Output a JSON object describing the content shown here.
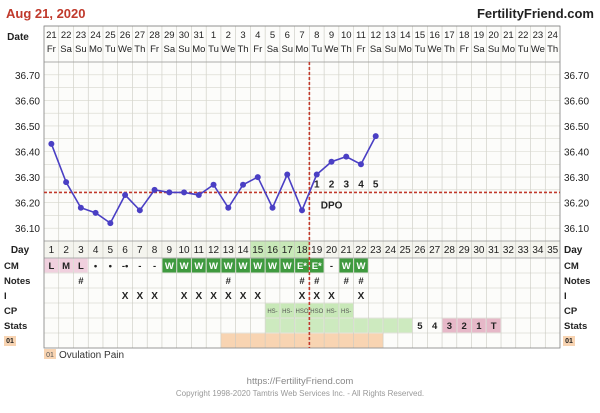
{
  "header": {
    "date": "Aug 21, 2020",
    "site": "FertilityFriend.com"
  },
  "footer": {
    "url": "https://FertilityFriend.com",
    "copyright": "Copyright 1998-2020 Tamtris Web Services Inc. - All Rights Reserved."
  },
  "legend": {
    "code": "01",
    "label": "Ovulation Pain"
  },
  "colors": {
    "line": "#4a3fc4",
    "coverline": "#c0392b",
    "ovulation_line": "#c0392b",
    "title": "#c0392b",
    "cm_fertile": "#3f9a3f",
    "cm_light": "#f0d0de",
    "fertile_window": "#c8e8b8",
    "stats_high": "#e6b8c8",
    "pain": "#f8d4b2"
  },
  "chart_data": {
    "type": "line",
    "axis_titles": {
      "date": "Date",
      "day": "Day"
    },
    "date_row": [
      "21",
      "22",
      "23",
      "24",
      "25",
      "26",
      "27",
      "28",
      "29",
      "30",
      "31",
      "1",
      "2",
      "3",
      "4",
      "5",
      "6",
      "7",
      "8",
      "9",
      "10",
      "11",
      "12",
      "13",
      "14",
      "15",
      "16",
      "17",
      "18",
      "19",
      "20",
      "21",
      "22",
      "23",
      "24"
    ],
    "weekday_row": [
      "Fr",
      "Sa",
      "Su",
      "Mo",
      "Tu",
      "We",
      "Th",
      "Fr",
      "Sa",
      "Su",
      "Mo",
      "Tu",
      "We",
      "Th",
      "Fr",
      "Sa",
      "Su",
      "Mo",
      "Tu",
      "We",
      "Th",
      "Fr",
      "Sa",
      "Su",
      "Mo",
      "Tu",
      "We",
      "Th",
      "Fr",
      "Sa",
      "Su",
      "Mo",
      "Tu",
      "We",
      "Th"
    ],
    "day_row": [
      "1",
      "2",
      "3",
      "4",
      "5",
      "6",
      "7",
      "8",
      "9",
      "10",
      "11",
      "12",
      "13",
      "14",
      "15",
      "16",
      "17",
      "18",
      "19",
      "20",
      "21",
      "22",
      "23",
      "24",
      "25",
      "26",
      "27",
      "28",
      "29",
      "30",
      "31",
      "32",
      "33",
      "34",
      "35"
    ],
    "ylim": [
      36.05,
      36.75
    ],
    "y_ticks": [
      "36.70",
      "36.60",
      "36.50",
      "36.40",
      "36.30",
      "36.20",
      "36.10"
    ],
    "y_tick_values": [
      36.7,
      36.6,
      36.5,
      36.4,
      36.3,
      36.2,
      36.1
    ],
    "temps": [
      36.43,
      36.28,
      36.18,
      36.16,
      36.12,
      36.23,
      36.17,
      36.25,
      36.24,
      36.24,
      36.23,
      36.27,
      36.18,
      36.27,
      36.3,
      36.18,
      36.31,
      36.17,
      36.31,
      36.36,
      36.38,
      36.35,
      36.46
    ],
    "coverline": 36.24,
    "ovulation_day": 18,
    "dpo_label": "DPO",
    "dpo": [
      {
        "day": 19,
        "label": "1"
      },
      {
        "day": 20,
        "label": "2"
      },
      {
        "day": 21,
        "label": "3"
      },
      {
        "day": 22,
        "label": "4"
      },
      {
        "day": 23,
        "label": "5"
      }
    ],
    "rows": [
      {
        "name": "CM",
        "cells": [
          "L",
          "M",
          "L",
          "•",
          "•",
          "-•",
          "-",
          "-",
          "W",
          "W",
          "W",
          "W",
          "W",
          "W",
          "W",
          "W",
          "W",
          "E*",
          "E*",
          "-",
          "W",
          "W",
          "",
          "",
          "",
          "",
          "",
          "",
          "",
          "",
          "",
          "",
          "",
          "",
          ""
        ]
      },
      {
        "name": "Notes",
        "cells": [
          "",
          "",
          "#",
          "",
          "",
          "",
          "",
          "",
          "",
          "",
          "",
          "",
          "#",
          "",
          "",
          "",
          "",
          "#",
          "#",
          "",
          "#",
          "#",
          "",
          "",
          "",
          "",
          "",
          "",
          "",
          "",
          "",
          "",
          "",
          "",
          ""
        ]
      },
      {
        "name": "I",
        "cells": [
          "",
          "",
          "",
          "",
          "",
          "X",
          "X",
          "X",
          "",
          "X",
          "X",
          "X",
          "X",
          "X",
          "X",
          "",
          "",
          "X",
          "X",
          "X",
          "",
          "X",
          "",
          "",
          "",
          "",
          "",
          "",
          "",
          "",
          "",
          "",
          "",
          "",
          ""
        ]
      },
      {
        "name": "CP",
        "cells": [
          "",
          "",
          "",
          "",
          "",
          "",
          "",
          "",
          "",
          "",
          "",
          "",
          "",
          "",
          "",
          "HS-",
          "HS-",
          "HSO",
          "HSO",
          "HS-",
          "HS-",
          "",
          "",
          "",
          "",
          "",
          "",
          "",
          "",
          "",
          "",
          "",
          "",
          "",
          ""
        ]
      },
      {
        "name": "Stats",
        "cells": [
          "",
          "",
          "",
          "",
          "",
          "",
          "",
          "",
          "",
          "",
          "",
          "",
          "",
          "",
          "",
          "",
          "",
          "",
          "",
          "",
          "",
          "",
          "",
          "",
          "",
          "5",
          "4",
          "3",
          "2",
          "1",
          "T",
          "",
          "",
          "",
          ""
        ]
      },
      {
        "name": "01",
        "cells": [
          "",
          "",
          "",
          "",
          "",
          "",
          "",
          "",
          "",
          "",
          "",
          "",
          "",
          "",
          "",
          "",
          "",
          "",
          "",
          "",
          "",
          "",
          "",
          "",
          "",
          "",
          "",
          "",
          "",
          "",
          "",
          "",
          "",
          "",
          ""
        ]
      }
    ],
    "pain_days": [
      13,
      14,
      15,
      16,
      17,
      18,
      19,
      20,
      21,
      22,
      23
    ]
  }
}
